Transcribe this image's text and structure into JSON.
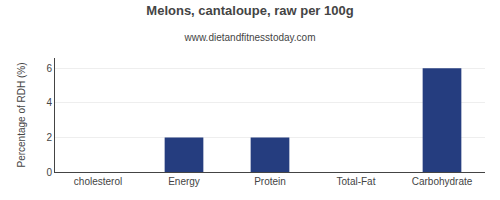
{
  "chart_data": {
    "type": "bar",
    "title": "Melons, cantaloupe, raw per 100g",
    "subtitle": "www.dietandfitnesstoday.com",
    "categories": [
      "cholesterol",
      "Energy",
      "Protein",
      "Total-Fat",
      "Carbohydrate"
    ],
    "values": [
      0,
      2,
      2,
      0,
      6
    ],
    "color": "#253d7f",
    "ylabel": "Percentage of RDH (%)",
    "ylim": [
      0,
      6.6
    ],
    "yticks": [
      0,
      2,
      4,
      6
    ],
    "grid": true
  }
}
